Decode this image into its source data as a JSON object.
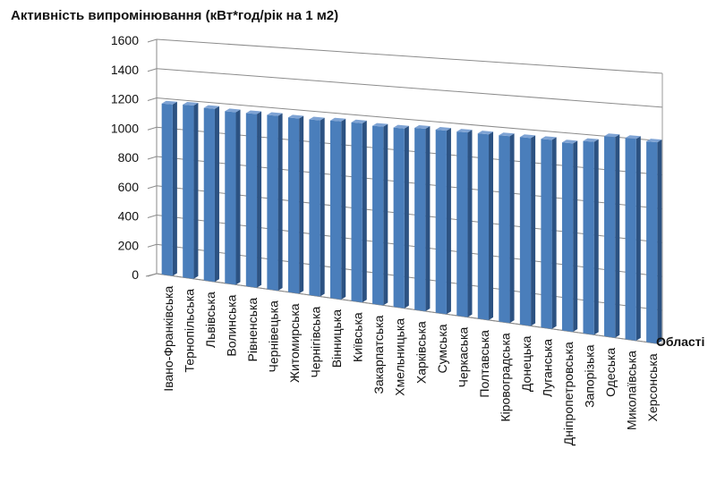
{
  "chart_data": {
    "type": "bar",
    "title": "Активність випромінювання (кВт*год/рік на 1 м2)",
    "xlabel": "Області",
    "ylabel": "",
    "ylim": [
      0,
      1600
    ],
    "yticks": [
      0,
      200,
      400,
      600,
      800,
      1000,
      1200,
      1400,
      1600
    ],
    "grid": true,
    "bar_color": "#4a7ebb",
    "categories": [
      "Івано-Франківська",
      "Тернопільська",
      "Львівська",
      "Волинська",
      "Рівненська",
      "Чернівецька",
      "Житомирська",
      "Чернігівська",
      "Вінницька",
      "Київська",
      "Закарпатська",
      "Хмельницька",
      "Харківська",
      "Сумська",
      "Черкаська",
      "Полтавська",
      "Кіровоградська",
      "Донецька",
      "Луганська",
      "Дніпропетровська",
      "Запорізька",
      "Одеська",
      "Миколаївська",
      "Херсонська"
    ],
    "values": [
      1165,
      1170,
      1160,
      1150,
      1150,
      1150,
      1145,
      1145,
      1150,
      1150,
      1140,
      1140,
      1150,
      1150,
      1150,
      1150,
      1150,
      1150,
      1150,
      1140,
      1160,
      1200,
      1200,
      1190
    ]
  }
}
